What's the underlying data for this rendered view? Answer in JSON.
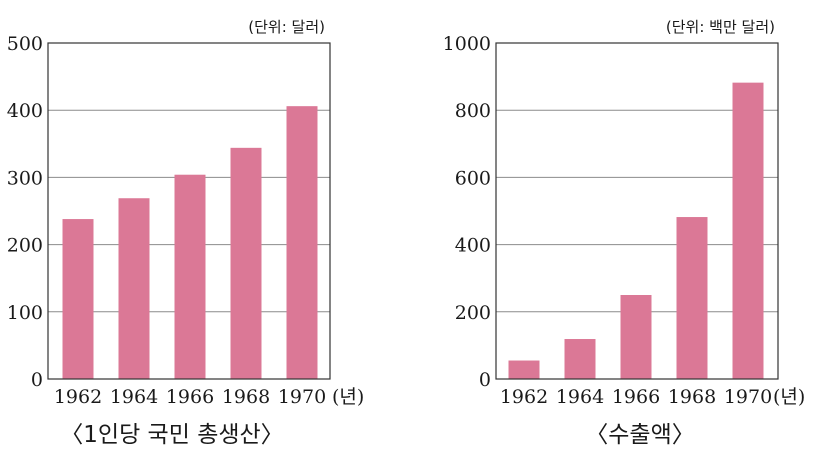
{
  "chart_data": [
    {
      "type": "bar",
      "caption": "〈1인당 국민 총생산〉",
      "unit_note": "(단위: 달러)",
      "categories": [
        "1962",
        "1964",
        "1966",
        "1968",
        "1970"
      ],
      "x_suffix": "(년)",
      "values": [
        238,
        269,
        304,
        344,
        406
      ],
      "ylim": [
        0,
        500
      ],
      "yticks": [
        0,
        100,
        200,
        300,
        400,
        500
      ],
      "grid": true,
      "bar_color": "#db7896"
    },
    {
      "type": "bar",
      "caption": "〈수출액〉",
      "unit_note": "(단위: 백만 달러)",
      "categories": [
        "1962",
        "1964",
        "1966",
        "1968",
        "1970"
      ],
      "x_suffix": "(년)",
      "values": [
        55,
        119,
        250,
        482,
        882
      ],
      "ylim": [
        0,
        1000
      ],
      "yticks": [
        0,
        200,
        400,
        600,
        800,
        1000
      ],
      "grid": true,
      "bar_color": "#db7896"
    }
  ]
}
